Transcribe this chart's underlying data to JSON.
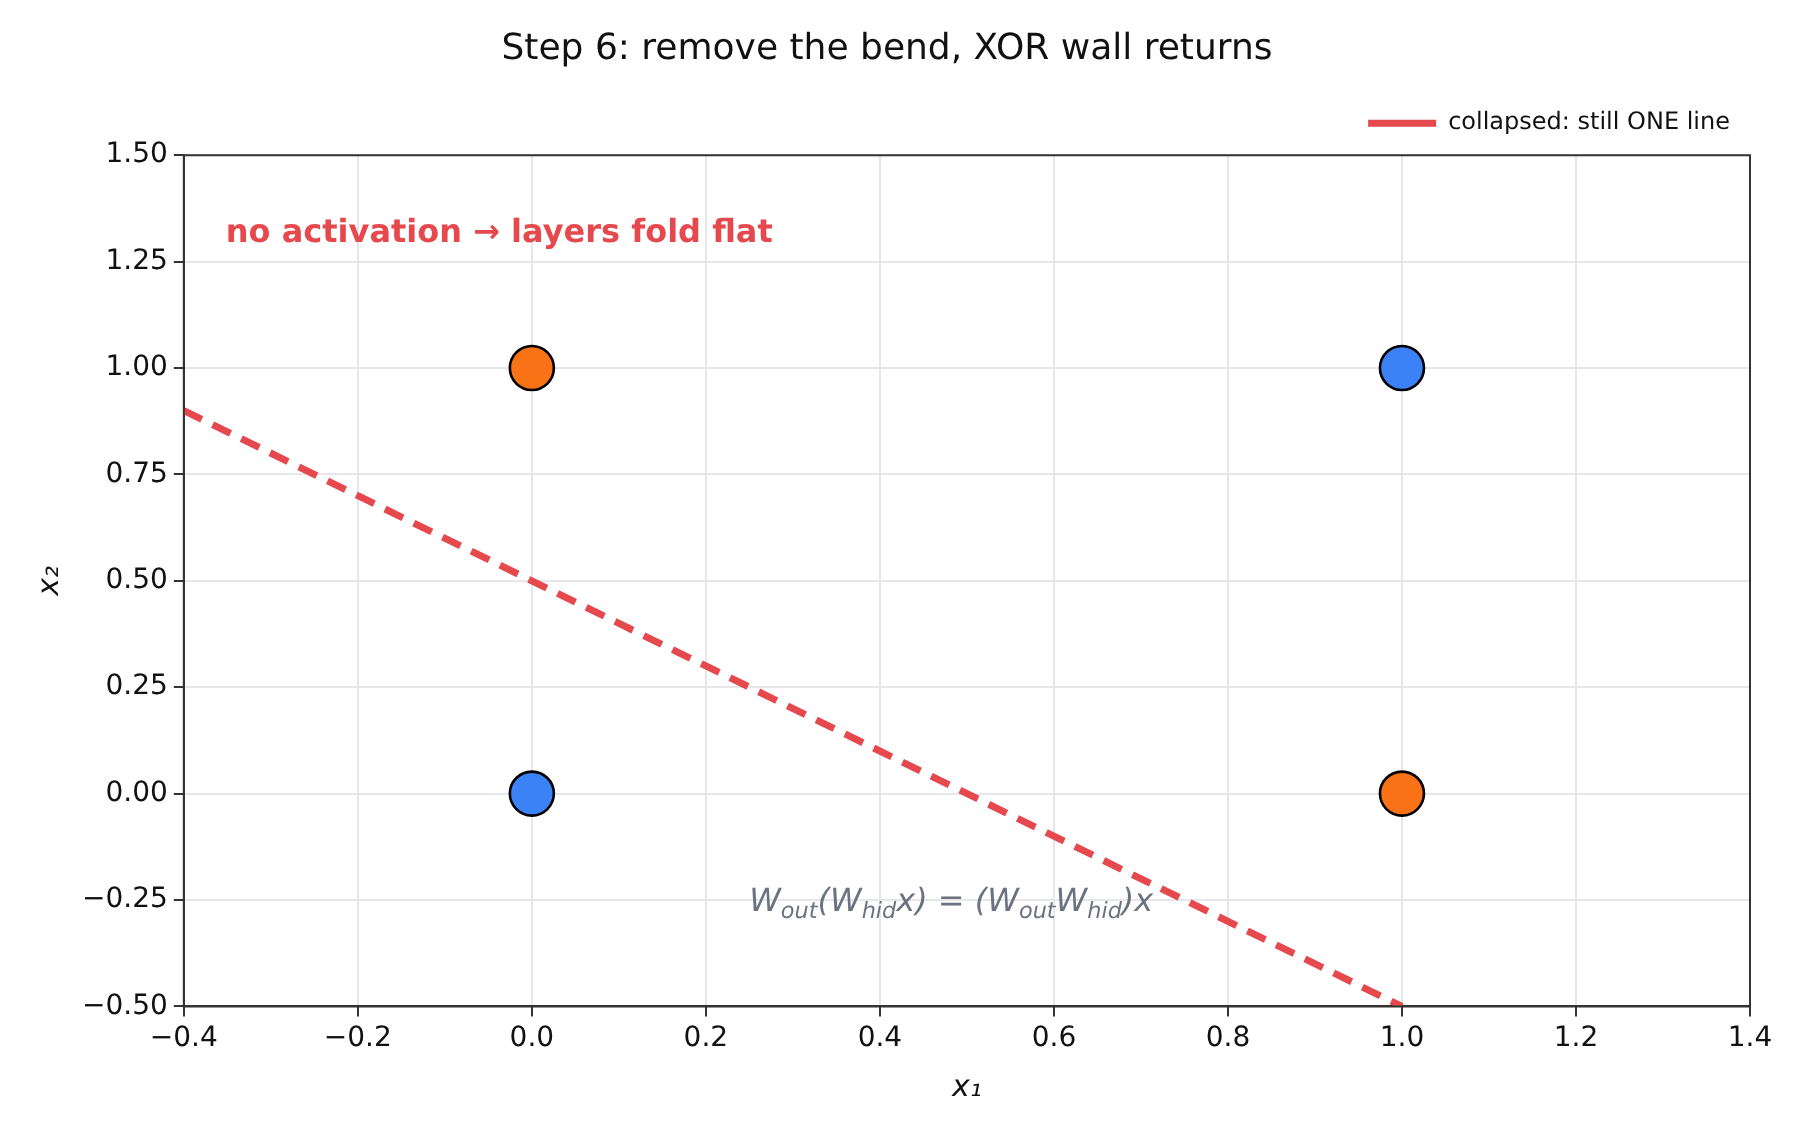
{
  "chart_data": {
    "type": "scatter",
    "title": "Step 6: remove the bend, XOR wall returns",
    "xlabel": "x₁",
    "ylabel": "x₂",
    "annotations": [
      "no activation → layers fold flat",
      "W$_{out}$(W$_{hid}$x) = (W$_{out}$W$_{hid}$)x"
    ],
    "series": [
      {
        "color": "#3b82f6",
        "x": [
          0,
          1
        ],
        "values": [
          0,
          1
        ],
        "marker": "circle"
      },
      {
        "color": "#f97316",
        "x": [
          0,
          1
        ],
        "values": [
          1,
          0
        ],
        "marker": "circle"
      },
      {
        "type": "line",
        "name": "collapsed: still ONE line",
        "color": "#e5484d",
        "x": [
          -0.4,
          1.0
        ],
        "values": [
          0.9,
          -0.5
        ],
        "line_style": "dashed",
        "marker": "none"
      }
    ],
    "xlim": [
      -0.4,
      1.4
    ],
    "xticks": [
      {
        "value": -0.4,
        "label": "−0.4"
      },
      {
        "value": -0.2,
        "label": "−0.2"
      },
      {
        "value": 0,
        "label": "0.0"
      },
      {
        "value": 0.2,
        "label": "0.2"
      },
      {
        "value": 0.4,
        "label": "0.4"
      },
      {
        "value": 0.6,
        "label": "0.6"
      },
      {
        "value": 0.8,
        "label": "0.8"
      },
      {
        "value": 1.0,
        "label": "1.0"
      },
      {
        "value": 1.2,
        "label": "1.2"
      },
      {
        "value": 1.4,
        "label": "1.4"
      }
    ],
    "ylim": [
      -0.5,
      1.5
    ],
    "yticks": [
      {
        "value": -0.5,
        "label": "−0.50"
      },
      {
        "value": -0.25,
        "label": "−0.25"
      },
      {
        "value": 0,
        "label": "0.00"
      },
      {
        "value": 0.25,
        "label": "0.25"
      },
      {
        "value": 0.5,
        "label": "0.50"
      },
      {
        "value": 0.75,
        "label": "0.75"
      },
      {
        "value": 1.0,
        "label": "1.00"
      },
      {
        "value": 1.25,
        "label": "1.25"
      },
      {
        "value": 1.5,
        "label": "1.50"
      }
    ],
    "grid": true,
    "legend": "top right"
  }
}
